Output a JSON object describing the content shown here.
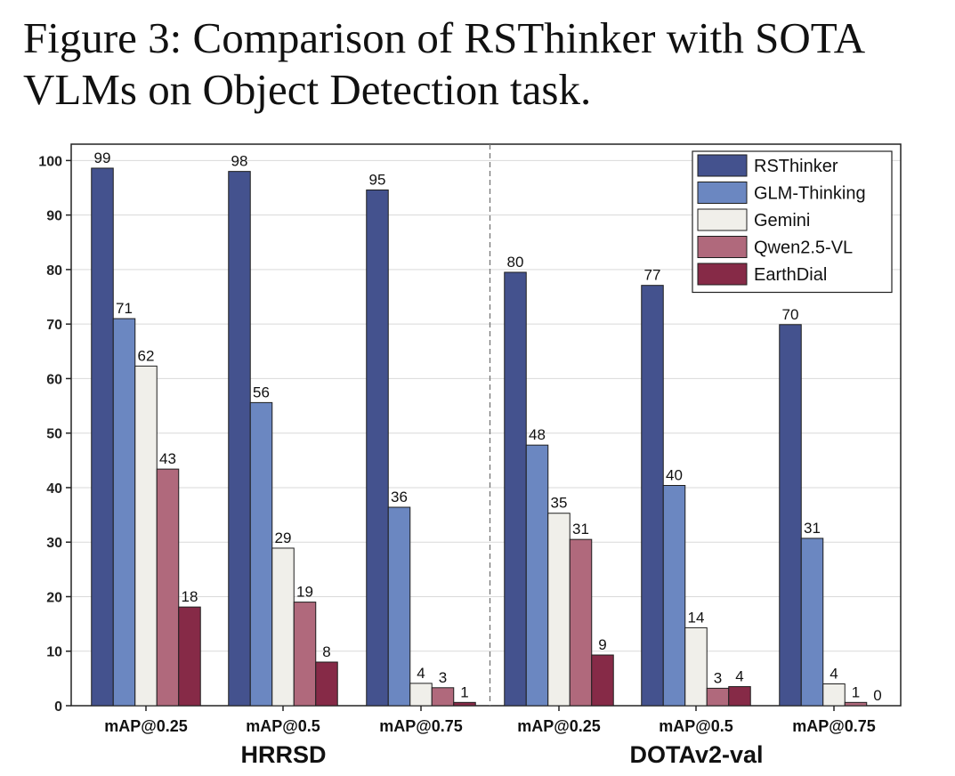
{
  "figure": {
    "caption": "Figure 3: Comparison of RSThinker with SOTA VLMs on Object Detection task."
  },
  "chart_data": {
    "type": "bar",
    "title": "",
    "xlabel": "",
    "ylabel": "",
    "ylim": [
      0,
      103
    ],
    "yticks": [
      0,
      10,
      20,
      30,
      40,
      50,
      60,
      70,
      80,
      90,
      100
    ],
    "grid": true,
    "legend_position": "top-right",
    "groups": [
      {
        "name": "HRRSD",
        "categories": [
          "mAP@0.25",
          "mAP@0.5",
          "mAP@0.75"
        ]
      },
      {
        "name": "DOTAv2-val",
        "categories": [
          "mAP@0.25",
          "mAP@0.5",
          "mAP@0.75"
        ]
      }
    ],
    "categories": [
      "mAP@0.25",
      "mAP@0.5",
      "mAP@0.75",
      "mAP@0.25",
      "mAP@0.5",
      "mAP@0.75"
    ],
    "series": [
      {
        "name": "RSThinker",
        "color": "#44528e",
        "values": [
          98.6,
          98.0,
          94.6,
          79.5,
          77.1,
          69.9
        ],
        "labels": [
          "99",
          "98",
          "95",
          "80",
          "77",
          "70"
        ]
      },
      {
        "name": "GLM-Thinking",
        "color": "#6b87c1",
        "values": [
          71.0,
          55.6,
          36.4,
          47.8,
          40.4,
          30.7
        ],
        "labels": [
          "71",
          "56",
          "36",
          "48",
          "40",
          "31"
        ]
      },
      {
        "name": "Gemini",
        "color": "#f0efea",
        "values": [
          62.3,
          28.9,
          4.1,
          35.3,
          14.3,
          4.0
        ],
        "labels": [
          "62",
          "29",
          "4",
          "35",
          "14",
          "4"
        ]
      },
      {
        "name": "Qwen2.5-VL",
        "color": "#b0697c",
        "values": [
          43.4,
          19.0,
          3.3,
          30.5,
          3.2,
          0.6
        ],
        "labels": [
          "43",
          "19",
          "3",
          "31",
          "3",
          "1"
        ]
      },
      {
        "name": "EarthDial",
        "color": "#862a47",
        "values": [
          18.1,
          8.0,
          0.6,
          9.3,
          3.5,
          0.0
        ],
        "labels": [
          "18",
          "8",
          "1",
          "9",
          "4",
          "0"
        ]
      }
    ]
  }
}
